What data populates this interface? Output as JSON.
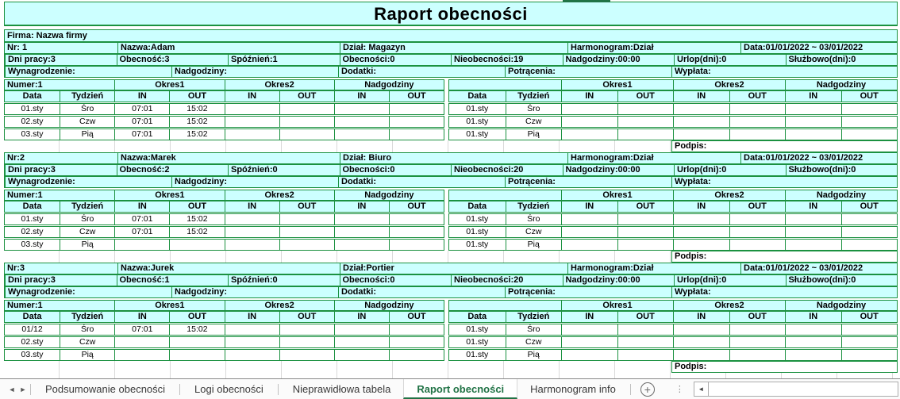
{
  "title": "Raport obecności",
  "firma": "Firma: Nazwa firmy",
  "colors": {
    "cell_bg": "#CCFFFF",
    "grid_green": "#1B9140",
    "tab_active_green": "#217346"
  },
  "table_chrome": {
    "numer": "Numer:1",
    "okres1": "Okres1",
    "okres2": "Okres2",
    "nadgodziny": "Nadgodziny",
    "col_data": "Data",
    "col_tydzien": "Tydzień",
    "col_in": "IN",
    "col_out": "OUT",
    "podpis": "Podpis:"
  },
  "pay_labels": [
    "Wynagrodzenie:",
    "Nadgodziny:",
    "Dodatki:",
    "Potrącenia:",
    "Wypłata:"
  ],
  "blocks": [
    {
      "nr": "Nr: 1",
      "nazwa": "Nazwa:Adam",
      "dzial": "Dział: Magazyn",
      "harmonogram": "Harmonogram:Dział",
      "data_range": "Data:01/01/2022 ~ 03/01/2022",
      "stats": [
        "Dni pracy:3",
        "Obecność:3",
        "Spóźnień:1",
        "Obecności:0",
        "Nieobecności:19",
        "Nadgodziny:00:00",
        "Urlop(dni):0",
        "Służbowo(dni):0"
      ],
      "left_rows": [
        [
          "01.sty",
          "Śro",
          "07:01",
          "15:02",
          "",
          "",
          "",
          ""
        ],
        [
          "02.sty",
          "Czw",
          "07:01",
          "15:02",
          "",
          "",
          "",
          ""
        ],
        [
          "03.sty",
          "Pią",
          "07:01",
          "15:02",
          "",
          "",
          "",
          ""
        ]
      ],
      "right_rows": [
        [
          "01.sty",
          "Śro",
          "",
          "",
          "",
          "",
          "",
          ""
        ],
        [
          "01.sty",
          "Czw",
          "",
          "",
          "",
          "",
          "",
          ""
        ],
        [
          "01.sty",
          "Pią",
          "",
          "",
          "",
          "",
          "",
          ""
        ]
      ]
    },
    {
      "nr": "Nr:2",
      "nazwa": "Nazwa:Marek",
      "dzial": "Dział: Biuro",
      "harmonogram": "Harmonogram:Dział",
      "data_range": "Data:01/01/2022 ~ 03/01/2022",
      "stats": [
        "Dni pracy:3",
        "Obecność:2",
        "Spóźnień:0",
        "Obecności:0",
        "Nieobecności:20",
        "Nadgodziny:00:00",
        "Urlop(dni):0",
        "Służbowo(dni):0"
      ],
      "left_rows": [
        [
          "01.sty",
          "Śro",
          "07:01",
          "15:02",
          "",
          "",
          "",
          ""
        ],
        [
          "02.sty",
          "Czw",
          "07:01",
          "15:02",
          "",
          "",
          "",
          ""
        ],
        [
          "03.sty",
          "Pią",
          "",
          "",
          "",
          "",
          "",
          ""
        ]
      ],
      "right_rows": [
        [
          "01.sty",
          "Śro",
          "",
          "",
          "",
          "",
          "",
          ""
        ],
        [
          "01.sty",
          "Czw",
          "",
          "",
          "",
          "",
          "",
          ""
        ],
        [
          "01.sty",
          "Pią",
          "",
          "",
          "",
          "",
          "",
          ""
        ]
      ]
    },
    {
      "nr": "Nr:3",
      "nazwa": "Nazwa:Jurek",
      "dzial": "Dział:Portier",
      "harmonogram": "Harmonogram:Dział",
      "data_range": "Data:01/01/2022 ~ 03/01/2022",
      "stats": [
        "Dni pracy:3",
        "Obecność:1",
        "Spóźnień:0",
        "Obecności:0",
        "Nieobecności:20",
        "Nadgodziny:00:00",
        "Urlop(dni):0",
        "Służbowo(dni):0"
      ],
      "left_rows": [
        [
          "01/12",
          "Śro",
          "07:01",
          "15:02",
          "",
          "",
          "",
          ""
        ],
        [
          "02.sty",
          "Czw",
          "",
          "",
          "",
          "",
          "",
          ""
        ],
        [
          "03.sty",
          "Pią",
          "",
          "",
          "",
          "",
          "",
          ""
        ]
      ],
      "right_rows": [
        [
          "01.sty",
          "Śro",
          "",
          "",
          "",
          "",
          "",
          ""
        ],
        [
          "01.sty",
          "Czw",
          "",
          "",
          "",
          "",
          "",
          ""
        ],
        [
          "01.sty",
          "Pią",
          "",
          "",
          "",
          "",
          "",
          ""
        ]
      ]
    }
  ],
  "tabbar": {
    "tabs": [
      {
        "label": "Podsumowanie obecności",
        "active": false
      },
      {
        "label": "Logi obecności",
        "active": false
      },
      {
        "label": "Nieprawidłowa tabela",
        "active": false
      },
      {
        "label": "Raport obecności",
        "active": true
      },
      {
        "label": "Harmonogram info",
        "active": false
      }
    ],
    "icons": {
      "nav_left": "◄",
      "nav_right": "►",
      "add_sheet": "+",
      "kebab": "⋮",
      "scroll_left": "◄"
    }
  }
}
